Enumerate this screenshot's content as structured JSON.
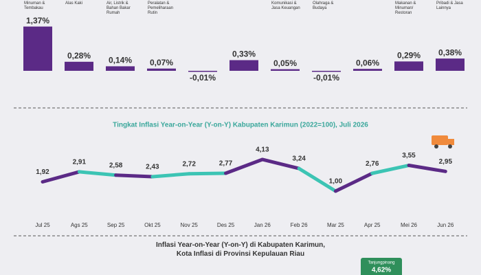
{
  "chart_data": [
    {
      "type": "bar",
      "categories": [
        "Minuman & Tembakau",
        "Alas Kaki",
        "Air, Listrik & Bahan Bakar Rumah",
        "Peralatan & Pemeliharaan Rutin",
        null,
        null,
        "Komunikasi & Jasa Keuangan",
        "Olahraga & Budaya",
        null,
        "Makanan & Minuman/ Restoran",
        "Pribadi & Jasa Lainnya"
      ],
      "values": [
        1.37,
        0.28,
        0.14,
        0.07,
        -0.01,
        0.33,
        0.05,
        -0.01,
        0.06,
        0.29,
        0.38
      ],
      "value_labels": [
        "1,37%",
        "0,28%",
        "0,14%",
        "0,07%",
        "-0,01%",
        "0,33%",
        "0,05%",
        "-0,01%",
        "0,06%",
        "0,29%",
        "0,38%"
      ],
      "color": "#5b2a86"
    },
    {
      "type": "line",
      "title": "Tingkat Inflasi Year-on-Year (Y-on-Y) Kabupaten Karimun (2022=100), Juli 2026",
      "categories": [
        "Jul 25",
        "Ags 25",
        "Sep 25",
        "Okt 25",
        "Nov 25",
        "Des 25",
        "Jan 26",
        "Feb 26",
        "Mar 25",
        "Apr 25",
        "Mei 26",
        "Jun 26"
      ],
      "values": [
        1.92,
        2.91,
        2.58,
        2.43,
        2.72,
        2.77,
        4.13,
        3.24,
        1.0,
        2.76,
        3.55,
        2.95
      ],
      "value_labels": [
        "1,92",
        "2,91",
        "2,58",
        "2,43",
        "2,72",
        "2,77",
        "4,13",
        "3,24",
        "1,00",
        "2,76",
        "3,55",
        "2,95"
      ],
      "segment_colors": [
        "#5b2a86",
        "#3cc4b4",
        "#5b2a86",
        "#3cc4b4",
        "#3cc4b4",
        "#5b2a86",
        "#5b2a86",
        "#3cc4b4",
        "#5b2a86",
        "#3cc4b4",
        "#5b2a86"
      ]
    },
    {
      "type": "bar",
      "title": "Inflasi Year-on-Year (Y-on-Y) di Kabupaten Karimun, Kota Inflasi di Provinsi Kepulauan Riau",
      "categories": [
        "Tanjungpinang"
      ],
      "values": [
        4.62
      ],
      "value_labels": [
        "4,62%"
      ],
      "color": "#2f8f5b"
    }
  ]
}
